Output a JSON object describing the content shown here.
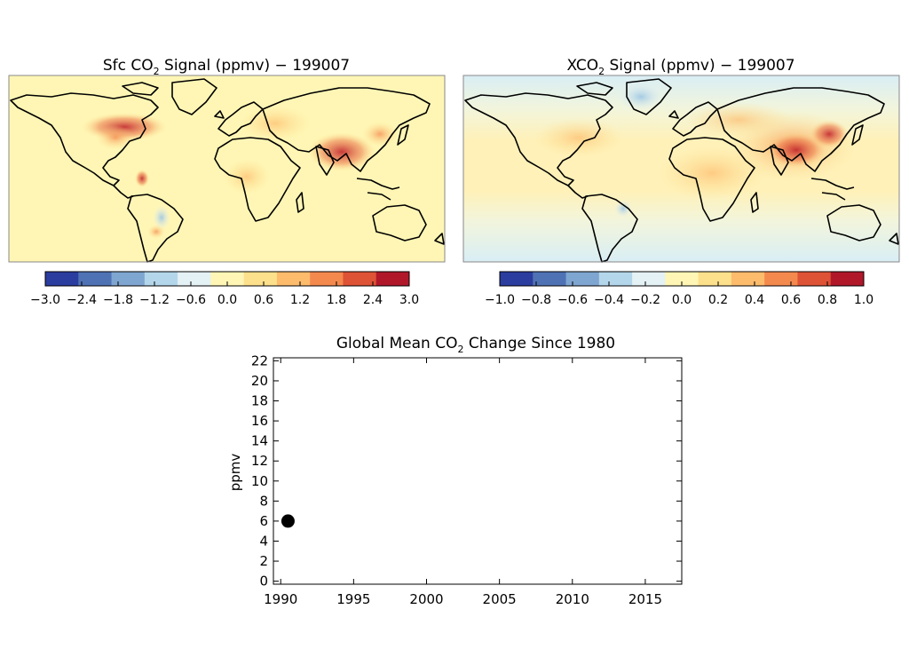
{
  "maps": [
    {
      "title_prefix": "Sfc CO",
      "title_sub": "2",
      "title_suffix": " Signal (ppmv) − 199007",
      "colorbar_ticks": [
        "−3.0",
        "−2.4",
        "−1.8",
        "−1.2",
        "−0.6",
        "0.0",
        "0.6",
        "1.2",
        "1.8",
        "2.4",
        "3.0"
      ],
      "colormap": [
        "#2b3d9e",
        "#4f72b5",
        "#7fa6d1",
        "#b4d6ea",
        "#e4f1f5",
        "#fff6b5",
        "#fde08b",
        "#fdbb6c",
        "#f4894e",
        "#de5236",
        "#b0182a"
      ]
    },
    {
      "title_prefix": "XCO",
      "title_sub": "2",
      "title_suffix": " Signal (ppmv) − 199007",
      "colorbar_ticks": [
        "−1.0",
        "−0.8",
        "−0.6",
        "−0.4",
        "−0.2",
        "0.0",
        "0.2",
        "0.4",
        "0.6",
        "0.8",
        "1.0"
      ],
      "colormap": [
        "#2b3d9e",
        "#4f72b5",
        "#7fa6d1",
        "#b4d6ea",
        "#e4f1f5",
        "#fff6b5",
        "#fde08b",
        "#fdbb6c",
        "#f4894e",
        "#de5236",
        "#b0182a"
      ]
    }
  ],
  "chart_data": {
    "type": "scatter",
    "title_prefix": "Global Mean CO",
    "title_sub": "2",
    "title_suffix": " Change Since 1980",
    "ylabel": "ppmv",
    "xlabel": "",
    "xlim": [
      1989.5,
      2017.5
    ],
    "ylim": [
      -0.3,
      22.3
    ],
    "x_ticks": [
      1990,
      1995,
      2000,
      2005,
      2010,
      2015
    ],
    "y_ticks": [
      0,
      2,
      4,
      6,
      8,
      10,
      12,
      14,
      16,
      18,
      20,
      22
    ],
    "points": [
      {
        "x": 1990.5,
        "y": 6.0
      }
    ],
    "marker_color": "#000000",
    "grid": false
  }
}
